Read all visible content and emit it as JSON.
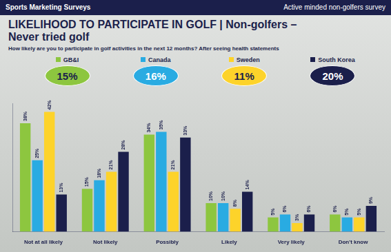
{
  "header": {
    "left": "Sports Marketing Surveys",
    "right": "Active minded non-golfers survey"
  },
  "chart_data": {
    "type": "bar",
    "title": "LIKELIHOOD TO PARTICIPATE IN GOLF | Non-golfers – Never tried golf",
    "subtitle": "How likely are you to participate in golf activities in the next 12 months? After seeing health statements",
    "categories": [
      "Not at all likely",
      "Not likely",
      "Possibly",
      "Likely",
      "Very likely",
      "Don't know"
    ],
    "series": [
      {
        "name": "GB&I",
        "color": "#8dc63f",
        "values": [
          38,
          15,
          34,
          10,
          5,
          6
        ],
        "value_labels": [
          "38%",
          "15%",
          "34%",
          "10%",
          "5%",
          "6%"
        ],
        "highlight": "15%"
      },
      {
        "name": "Canada",
        "color": "#29abe2",
        "values": [
          25,
          18,
          35,
          10,
          6,
          5
        ],
        "value_labels": [
          "25%",
          "18%",
          "35%",
          "10%",
          "6%",
          "5%"
        ],
        "highlight": "16%"
      },
      {
        "name": "Sweden",
        "color": "#fdd32a",
        "values": [
          42,
          21,
          21,
          8,
          3,
          5
        ],
        "value_labels": [
          "42%",
          "21%",
          "21%",
          "8%",
          "3%",
          "5%"
        ],
        "highlight": "11%"
      },
      {
        "name": "South Korea",
        "color": "#1b1f4b",
        "values": [
          13,
          28,
          33,
          14,
          6,
          9
        ],
        "value_labels": [
          "13%",
          "28%",
          "33%",
          "14%",
          "6%",
          "9%"
        ],
        "highlight": "20%"
      }
    ],
    "ylim": [
      0,
      45
    ],
    "grid": false,
    "legend": "top",
    "data_labels": true,
    "tick_labels": "x"
  }
}
